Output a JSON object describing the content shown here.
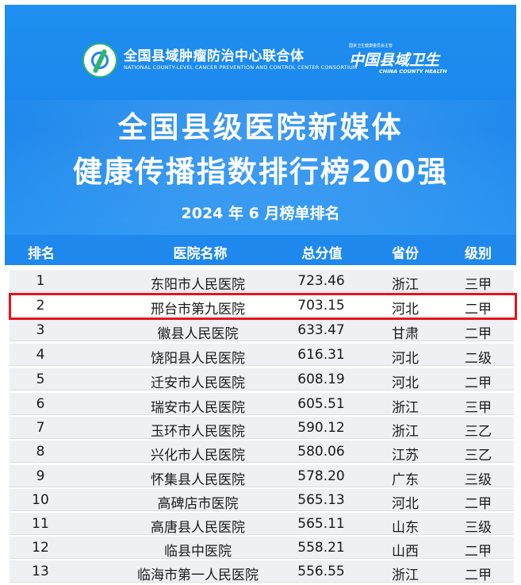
{
  "header": {
    "org_name": "全国县域肿瘤防治中心联合体",
    "org_name_en": "NATIONAL COUNTY-LEVEL CANCER PREVENTION AND CONTROL CENTER CONSORTIUM",
    "brand_small": "国家卫生健康委员会主管",
    "brand_name": "中国县域卫生",
    "brand_name_en": "CHINA COUNTY HEALTH",
    "title_line1": "全国县级医院新媒体",
    "title_line2": "健康传播指数排行榜200强",
    "subtitle": "2024 年 6 月榜单排名"
  },
  "table": {
    "columns": [
      "排名",
      "医院名称",
      "总分值",
      "省份",
      "级别"
    ],
    "highlighted_rank": "2",
    "rows": [
      {
        "rank": "1",
        "name": "东阳市人民医院",
        "score": "723.46",
        "province": "浙江",
        "level": "三甲"
      },
      {
        "rank": "2",
        "name": "邢台市第九医院",
        "score": "703.15",
        "province": "河北",
        "level": "二甲"
      },
      {
        "rank": "3",
        "name": "徽县人民医院",
        "score": "633.47",
        "province": "甘肃",
        "level": "二甲"
      },
      {
        "rank": "4",
        "name": "饶阳县人民医院",
        "score": "616.31",
        "province": "河北",
        "level": "二级"
      },
      {
        "rank": "5",
        "name": "迁安市人民医院",
        "score": "608.19",
        "province": "河北",
        "level": "二甲"
      },
      {
        "rank": "6",
        "name": "瑞安市人民医院",
        "score": "605.51",
        "province": "浙江",
        "level": "三甲"
      },
      {
        "rank": "7",
        "name": "玉环市人民医院",
        "score": "590.12",
        "province": "浙江",
        "level": "三乙"
      },
      {
        "rank": "8",
        "name": "兴化市人民医院",
        "score": "580.06",
        "province": "江苏",
        "level": "三乙"
      },
      {
        "rank": "9",
        "name": "怀集县人民医院",
        "score": "578.20",
        "province": "广东",
        "level": "三级"
      },
      {
        "rank": "10",
        "name": "高碑店市医院",
        "score": "565.13",
        "province": "河北",
        "level": "二甲"
      },
      {
        "rank": "11",
        "name": "高唐县人民医院",
        "score": "565.11",
        "province": "山东",
        "level": "三级"
      },
      {
        "rank": "12",
        "name": "临县中医院",
        "score": "558.21",
        "province": "山西",
        "level": "二甲"
      },
      {
        "rank": "13",
        "name": "临海市第一人民医院",
        "score": "556.55",
        "province": "浙江",
        "level": "二甲"
      }
    ]
  }
}
